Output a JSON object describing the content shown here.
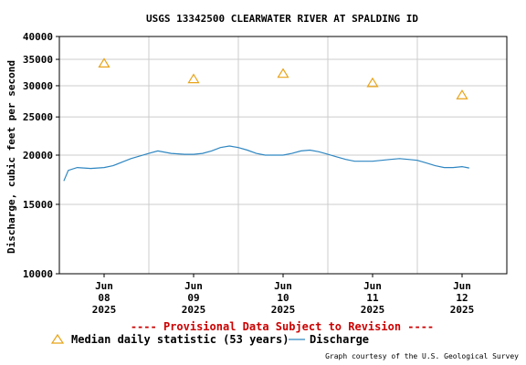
{
  "chart_data": {
    "type": "line",
    "title": "USGS 13342500 CLEARWATER RIVER AT SPALDING ID",
    "ylabel": "Discharge, cubic feet per second",
    "xlabel": "",
    "y_scale": "log",
    "ylim": [
      10000,
      40000
    ],
    "y_ticks": [
      "40000",
      "35000",
      "30000",
      "25000",
      "20000",
      "15000",
      "10000"
    ],
    "y_tick_values": [
      40000,
      35000,
      30000,
      25000,
      20000,
      15000,
      10000
    ],
    "x_ticks": [
      {
        "line1": "Jun",
        "line2": "08",
        "line3": "2025"
      },
      {
        "line1": "Jun",
        "line2": "09",
        "line3": "2025"
      },
      {
        "line1": "Jun",
        "line2": "10",
        "line3": "2025"
      },
      {
        "line1": "Jun",
        "line2": "11",
        "line3": "2025"
      },
      {
        "line1": "Jun",
        "line2": "12",
        "line3": "2025"
      }
    ],
    "x_range_days": [
      7.5,
      12.5
    ],
    "x_tick_days": [
      8,
      9,
      10,
      11,
      12
    ],
    "x_grid_days": [
      7.5,
      8.5,
      9.5,
      10.5,
      11.5,
      12.5
    ],
    "grid": true,
    "series": [
      {
        "name": "Median daily statistic (53 years)",
        "marker": "triangle",
        "color": "#E8A317",
        "x_days": [
          8,
          9,
          10,
          11,
          12
        ],
        "values": [
          34200,
          31200,
          32200,
          30500,
          28400
        ]
      },
      {
        "name": "Discharge",
        "marker": "line",
        "color": "#2E86C1",
        "x_days": [
          7.55,
          7.6,
          7.7,
          7.85,
          8.0,
          8.1,
          8.2,
          8.3,
          8.4,
          8.5,
          8.6,
          8.75,
          8.9,
          9.0,
          9.1,
          9.2,
          9.3,
          9.4,
          9.5,
          9.6,
          9.7,
          9.8,
          9.9,
          10.0,
          10.1,
          10.2,
          10.3,
          10.4,
          10.5,
          10.6,
          10.7,
          10.8,
          10.9,
          11.0,
          11.1,
          11.2,
          11.3,
          11.4,
          11.5,
          11.6,
          11.7,
          11.8,
          11.9,
          12.0,
          12.08
        ],
        "values": [
          17200,
          18300,
          18600,
          18500,
          18600,
          18800,
          19200,
          19600,
          19900,
          20200,
          20500,
          20200,
          20100,
          20100,
          20200,
          20500,
          20900,
          21100,
          20900,
          20600,
          20200,
          20000,
          20000,
          20000,
          20200,
          20500,
          20600,
          20400,
          20100,
          19800,
          19500,
          19300,
          19300,
          19300,
          19400,
          19500,
          19600,
          19500,
          19400,
          19100,
          18800,
          18600,
          18600,
          18700,
          18550
        ]
      }
    ]
  },
  "provisional_text": "---- Provisional Data Subject to Revision ----",
  "provisional_color": "#CC0000",
  "legend": {
    "median_label": "Median daily statistic (53 years)",
    "discharge_label": "Discharge"
  },
  "credit": "Graph courtesy of the U.S. Geological Survey"
}
